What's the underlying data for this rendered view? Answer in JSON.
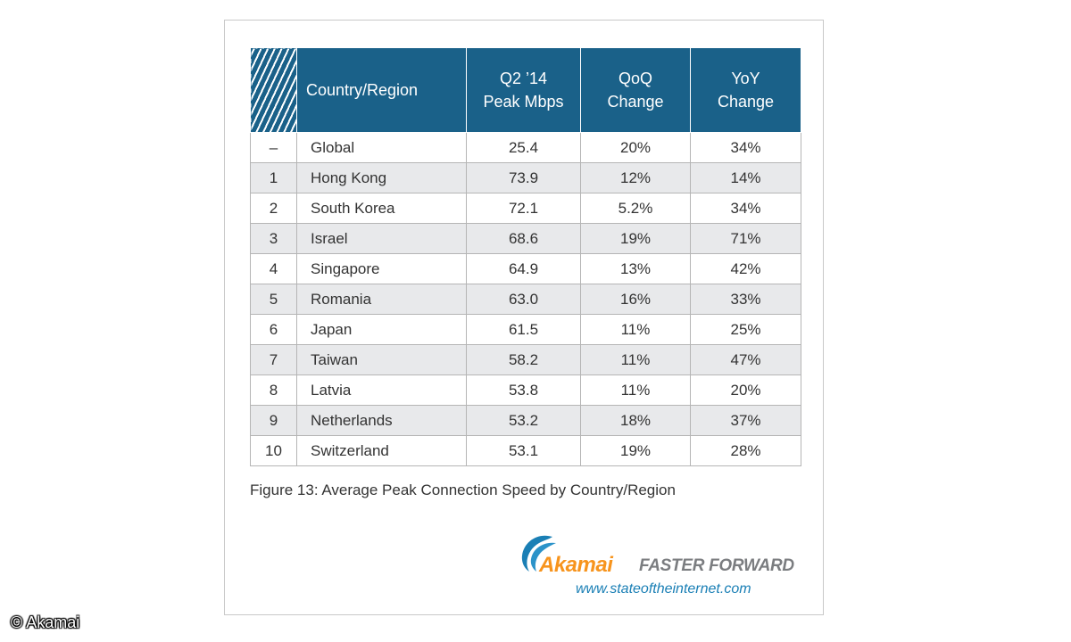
{
  "table": {
    "headers": {
      "country": "Country/Region",
      "peak_line1": "Q2 ’14",
      "peak_line2": "Peak Mbps",
      "qoq_line1": "QoQ",
      "qoq_line2": "Change",
      "yoy_line1": "YoY",
      "yoy_line2": "Change"
    },
    "rows": [
      {
        "rank": "–",
        "country": "Global",
        "peak": "25.4",
        "qoq": "20%",
        "yoy": "34%"
      },
      {
        "rank": "1",
        "country": "Hong Kong",
        "peak": "73.9",
        "qoq": "12%",
        "yoy": "14%"
      },
      {
        "rank": "2",
        "country": "South Korea",
        "peak": "72.1",
        "qoq": "5.2%",
        "yoy": "34%"
      },
      {
        "rank": "3",
        "country": "Israel",
        "peak": "68.6",
        "qoq": "19%",
        "yoy": "71%"
      },
      {
        "rank": "4",
        "country": "Singapore",
        "peak": "64.9",
        "qoq": "13%",
        "yoy": "42%"
      },
      {
        "rank": "5",
        "country": "Romania",
        "peak": "63.0",
        "qoq": "16%",
        "yoy": "33%"
      },
      {
        "rank": "6",
        "country": "Japan",
        "peak": "61.5",
        "qoq": "11%",
        "yoy": "25%"
      },
      {
        "rank": "7",
        "country": "Taiwan",
        "peak": "58.2",
        "qoq": "11%",
        "yoy": "47%"
      },
      {
        "rank": "8",
        "country": "Latvia",
        "peak": "53.8",
        "qoq": "11%",
        "yoy": "20%"
      },
      {
        "rank": "9",
        "country": "Netherlands",
        "peak": "53.2",
        "qoq": "18%",
        "yoy": "37%"
      },
      {
        "rank": "10",
        "country": "Switzerland",
        "peak": "53.1",
        "qoq": "19%",
        "yoy": "28%"
      }
    ]
  },
  "caption": "Figure 13: Average Peak Connection Speed by Country/Region",
  "logo": {
    "name": "Akamai",
    "tagline": "FASTER FORWARD",
    "url": "www.stateoftheinternet.com"
  },
  "copyright": "© Akamai",
  "colors": {
    "header_bg": "#1a6189",
    "alt_row_bg": "#e8e9eb",
    "brand_orange": "#f7941d",
    "brand_blue": "#1a7fb5"
  }
}
